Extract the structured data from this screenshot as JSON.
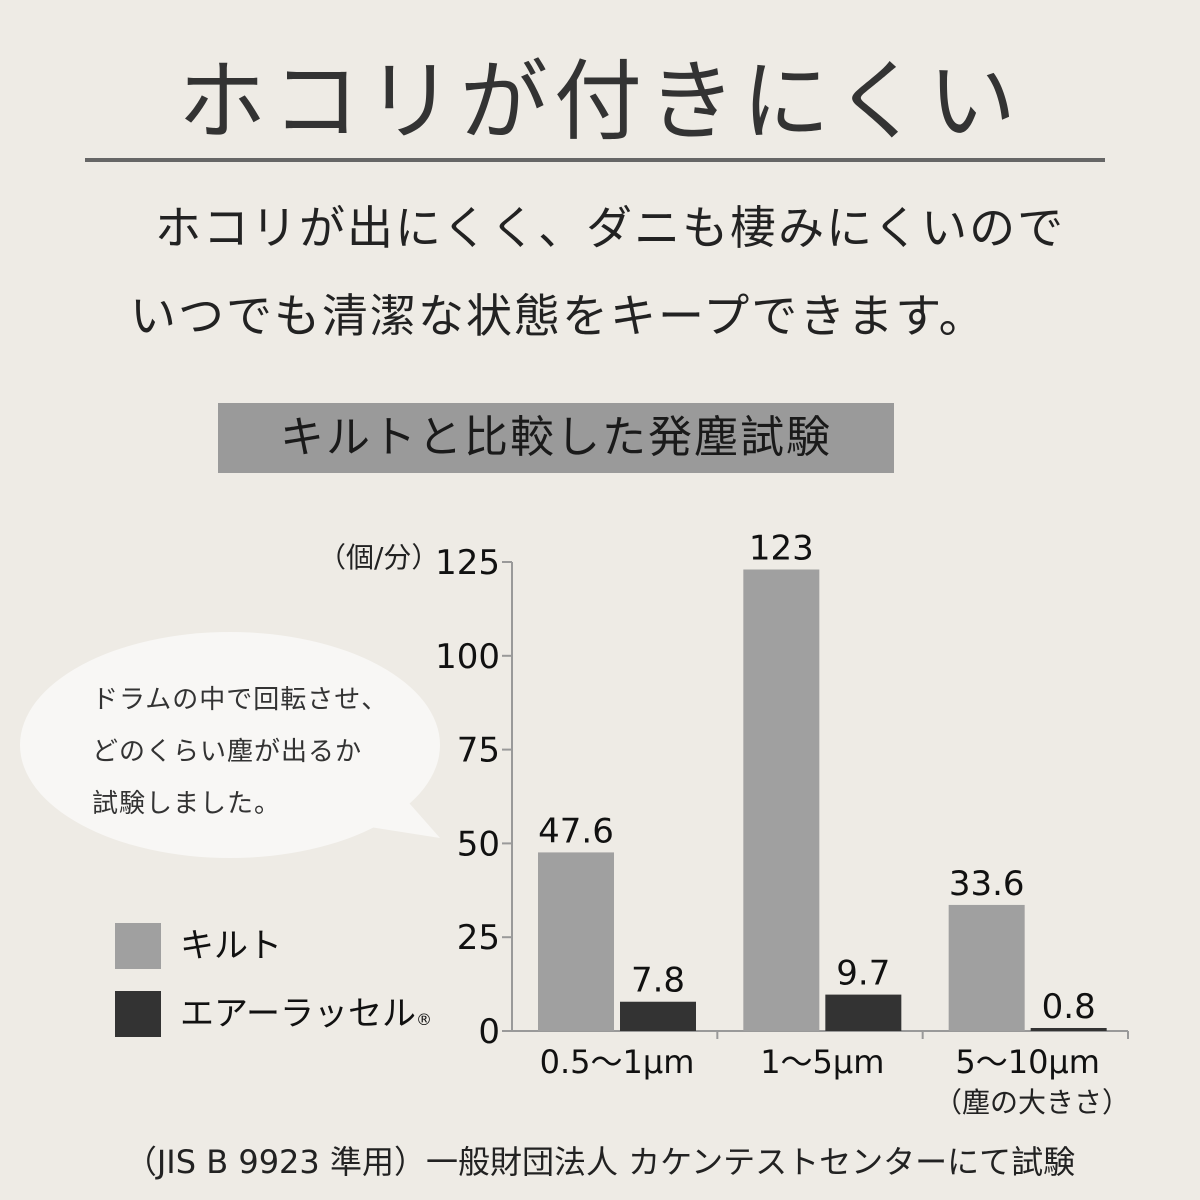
{
  "header": {
    "title": "ホコリが付きにくい",
    "description_line1": "ホコリが出にくく、ダニも棲みにくいので",
    "description_line2": "いつでも清潔な状態をキープできます。",
    "subtitle": "キルトと比較した発塵試験"
  },
  "bubble": {
    "lines": [
      "ドラムの中で回転させ、",
      "どのくらい塵が出るか",
      "試験しました。"
    ]
  },
  "legend": {
    "quilt": "キルト",
    "airrussell": "エアーラッセル",
    "registered_mark": "®"
  },
  "footer": "（JIS B 9923 準用）一般財団法人 カケンテストセンターにて試験",
  "chart_data": {
    "type": "bar",
    "ylabel": "（個/分）",
    "xlabel": "（塵の大きさ）",
    "ylim": [
      0,
      125
    ],
    "yticks": [
      0,
      25,
      50,
      75,
      100,
      125
    ],
    "categories": [
      "0.5〜1μm",
      "1〜5μm",
      "5〜10μm"
    ],
    "series": [
      {
        "name": "キルト",
        "values": [
          47.6,
          123,
          33.6
        ],
        "labels": [
          "47.6",
          "123",
          "33.6"
        ],
        "color": "#a0a0a0"
      },
      {
        "name": "エアーラッセル",
        "values": [
          7.8,
          9.7,
          0.8
        ],
        "labels": [
          "7.8",
          "9.7",
          "0.8"
        ],
        "color": "#333333"
      }
    ],
    "grid": false,
    "legend_position": "bottom-left"
  }
}
